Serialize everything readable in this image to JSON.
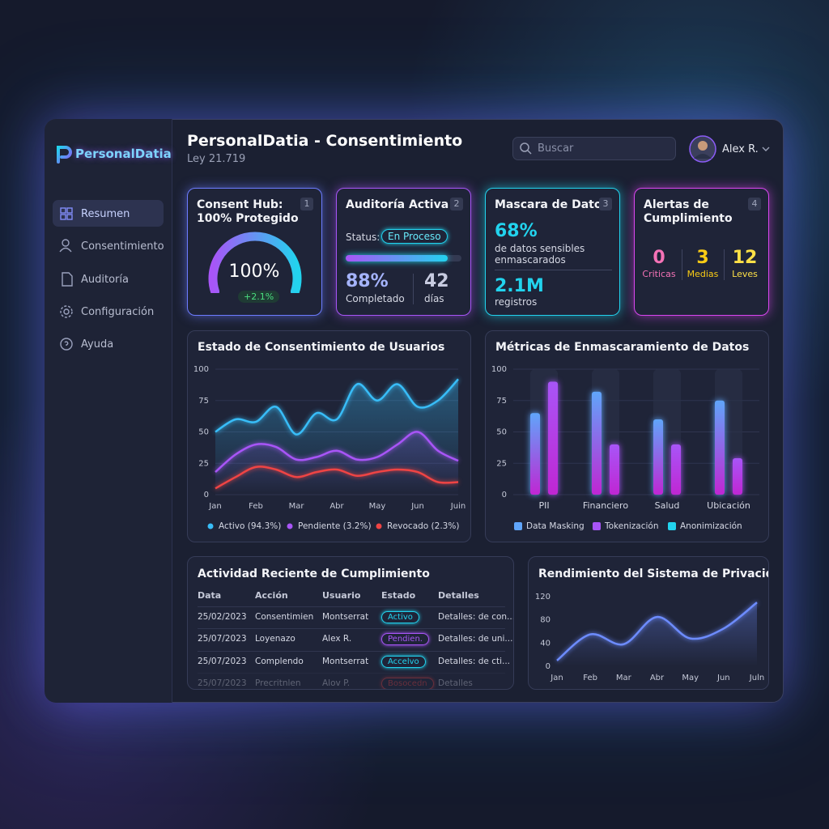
{
  "brand": "PersonalDatia",
  "header": {
    "title": "PersonalDatia - Consentimiento",
    "subtitle": "Ley 21.719",
    "search": "Buscar",
    "user": "Alex R."
  },
  "nav": {
    "items": [
      "Resumen",
      "Consentimiento",
      "Auditoría",
      "Configuración",
      "Ayuda"
    ],
    "active": 0
  },
  "cards": {
    "consent": {
      "number": 1,
      "title": [
        "Consent Hub:",
        "100% Protegido"
      ],
      "gauge": {
        "value": 100,
        "label": "100%"
      },
      "change": "+2.1%"
    },
    "audit": {
      "number": 2,
      "title": "Auditoría Activa",
      "status_label": "Status:",
      "status": "En Proceso",
      "completed": {
        "value": 88,
        "label": "88%"
      },
      "completed_label": "Completado",
      "days": 42,
      "days_label": "días"
    },
    "masking": {
      "number": 3,
      "title": "Mascara de Datos",
      "percent": {
        "value": 68,
        "label": "68%"
      },
      "percent_label": "de datos sensibles enmascarados",
      "records": {
        "value": 2100000,
        "label": "2.1M"
      },
      "records_label": "registros"
    },
    "alerts": {
      "number": 4,
      "title": [
        "Alertas de",
        "Cumplimiento"
      ],
      "items": [
        {
          "count": 0,
          "label": "Criticas",
          "color": "#f472b6"
        },
        {
          "count": 3,
          "label": "Medias",
          "color": "#facc15"
        },
        {
          "count": 12,
          "label": "Leves",
          "color": "#fde047"
        }
      ]
    }
  },
  "chart_data": [
    {
      "type": "line",
      "title": "Estado de Consentimiento de Usuarios",
      "x": [
        0,
        0.5,
        1,
        1.5,
        2,
        2.5,
        3,
        3.5,
        4,
        4.5,
        5,
        5.5,
        6
      ],
      "xlim": [
        0,
        6
      ],
      "xticks": [
        {
          "value": 0,
          "label": "Jan"
        },
        {
          "value": 1,
          "label": "Feb"
        },
        {
          "value": 2,
          "label": "Mar"
        },
        {
          "value": 3,
          "label": "Abr"
        },
        {
          "value": 4,
          "label": "May"
        },
        {
          "value": 5,
          "label": "Jun"
        },
        {
          "value": 6,
          "label": "Juin"
        }
      ],
      "ylim": [
        0,
        100
      ],
      "yticks": [
        0,
        25,
        50,
        75,
        100
      ],
      "grid": true,
      "series": [
        {
          "name": "Activo (94.3%)",
          "color": "#38bdf8",
          "values": [
            50,
            60,
            58,
            70,
            48,
            65,
            60,
            88,
            75,
            88,
            70,
            75,
            92
          ]
        },
        {
          "name": "Pendiente (3.2%)",
          "color": "#a855f7",
          "values": [
            18,
            32,
            40,
            38,
            28,
            30,
            35,
            28,
            30,
            40,
            50,
            35,
            27
          ]
        },
        {
          "name": "Revocado (2.3%)",
          "color": "#ef4444",
          "values": [
            5,
            14,
            22,
            20,
            14,
            18,
            20,
            15,
            18,
            20,
            18,
            10,
            10
          ]
        }
      ]
    },
    {
      "type": "bar",
      "title": "Métricas de Enmascaramiento de Datos",
      "categories": [
        "PII",
        "Financiero",
        "Salud",
        "Ubicación"
      ],
      "ylim": [
        0,
        100
      ],
      "yticks": [
        0,
        25,
        50,
        75,
        100
      ],
      "grid": true,
      "series": [
        {
          "name": "Data Masking",
          "color": "#60a5fa",
          "values": [
            65,
            82,
            60,
            75
          ]
        },
        {
          "name": "Tokenización",
          "color": "#a855f7",
          "values": [
            90,
            40,
            40,
            29
          ]
        },
        {
          "name": "Anonimización",
          "color": "#22d3ee",
          "values": [
            null,
            null,
            null,
            null
          ]
        }
      ]
    },
    {
      "type": "line",
      "title": "Rendimiento del Sistema de Privacidad",
      "categories": [
        "Jan",
        "Feb",
        "Mar",
        "Abr",
        "May",
        "Jun",
        "Juln"
      ],
      "ylim": [
        0,
        120
      ],
      "yticks": [
        0,
        40,
        80,
        120
      ],
      "grid": false,
      "color": "#6d8cff",
      "values": [
        10,
        55,
        38,
        85,
        48,
        65,
        110
      ]
    }
  ],
  "table": {
    "title": "Actividad Reciente de Cumplimiento",
    "columns": [
      "Data",
      "Acción",
      "Usuario",
      "Estado",
      "Detalles"
    ],
    "rows": [
      [
        "25/02/2023",
        "Consentimien",
        "Montserrat",
        "Activo",
        "Detalles: de con..."
      ],
      [
        "25/07/2023",
        "Loyenazo",
        "Alex R.",
        "Pendien.",
        "Detalles: de uni..."
      ],
      [
        "25/07/2023",
        "Complendo",
        "Montserrat",
        "Accelvo",
        "Detalles: de cti..."
      ],
      [
        "25/07/2023",
        "Precritnlen",
        "Alov P.",
        "Bosocedn",
        "Detalles"
      ]
    ],
    "status_colors": [
      "#22d3ee",
      "#a855f7",
      "#22d3ee",
      "#ef4444"
    ]
  }
}
